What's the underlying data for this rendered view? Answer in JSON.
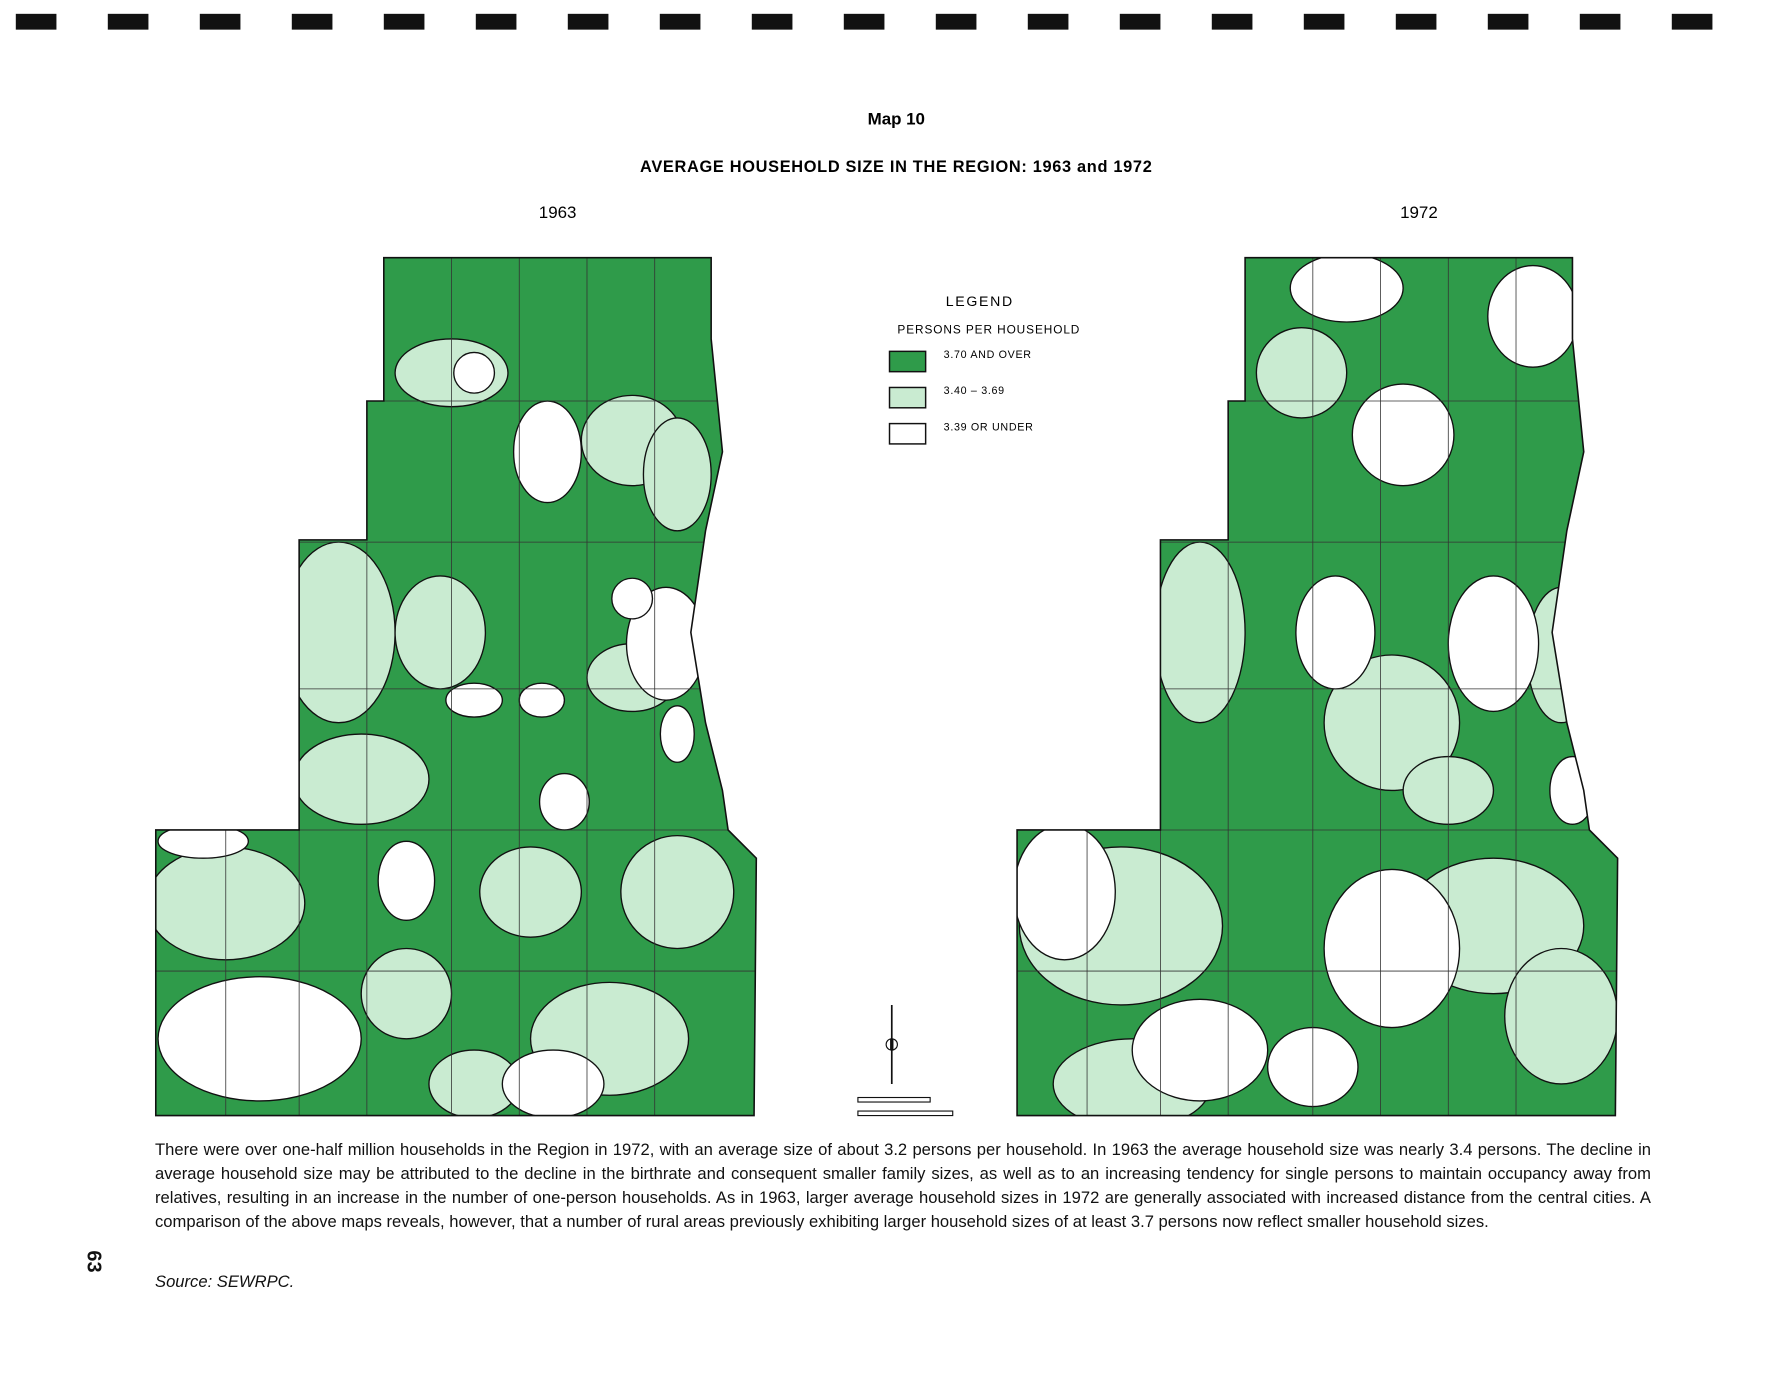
{
  "header": {
    "map_number": "Map 10",
    "title": "AVERAGE HOUSEHOLD SIZE IN THE REGION: 1963 and 1972"
  },
  "maps": [
    {
      "label": "1963"
    },
    {
      "label": "1972"
    }
  ],
  "legend": {
    "title": "LEGEND",
    "subtitle": "PERSONS PER HOUSEHOLD",
    "items": [
      {
        "label": "3.70 AND OVER",
        "color": "#2f9b4a"
      },
      {
        "label": "3.40 – 3.69",
        "color": "#c9ebd1"
      },
      {
        "label": "3.39 OR UNDER",
        "color": "#ffffff"
      }
    ]
  },
  "body": {
    "paragraph": "There were over one-half million households in the Region in 1972, with an average size of about 3.2 persons per household. In 1963 the average household size was nearly 3.4 persons. The decline in average household size may be attributed to the decline in the birthrate and consequent smaller family sizes, as well as to an increasing tendency for single persons to maintain occupancy away from relatives, resulting in an increase in the number of one-person households. As in 1963, larger average household sizes in 1972 are generally associated with increased distance from the central cities. A comparison of the above maps reveals, however, that a number of rural areas previously exhibiting larger household sizes of at least 3.7 persons now reflect smaller household sizes.",
    "source": "Source: SEWRPC.",
    "page_number": "63"
  }
}
